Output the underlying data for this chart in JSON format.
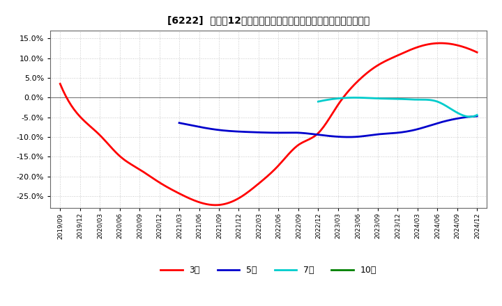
{
  "title": "[6222]  売上高12か月移動合計の対前年同期増減率の平均値の推移",
  "ylim": [
    -0.28,
    0.17
  ],
  "yticks": [
    -0.25,
    -0.2,
    -0.15,
    -0.1,
    -0.05,
    0.0,
    0.05,
    0.1,
    0.15
  ],
  "background_color": "#ffffff",
  "grid_color": "#c8c8c8",
  "x_labels": [
    "2019/09",
    "2019/12",
    "2020/03",
    "2020/06",
    "2020/09",
    "2020/12",
    "2021/03",
    "2021/06",
    "2021/09",
    "2021/12",
    "2022/03",
    "2022/06",
    "2022/09",
    "2022/12",
    "2023/03",
    "2023/06",
    "2023/09",
    "2023/12",
    "2024/03",
    "2024/06",
    "2024/09",
    "2024/12"
  ],
  "series": [
    {
      "key": "3year",
      "color": "#ff0000",
      "label": "3年",
      "data_x": [
        0,
        1,
        2,
        3,
        4,
        5,
        6,
        7,
        8,
        9,
        10,
        11,
        12,
        13,
        14,
        15,
        16,
        17,
        18,
        19,
        20,
        21
      ],
      "data_y": [
        0.035,
        -0.048,
        -0.095,
        -0.148,
        -0.182,
        -0.215,
        -0.243,
        -0.265,
        -0.272,
        -0.255,
        -0.218,
        -0.172,
        -0.12,
        -0.09,
        -0.018,
        0.042,
        0.082,
        0.107,
        0.128,
        0.138,
        0.133,
        0.115
      ]
    },
    {
      "key": "5year",
      "color": "#0000cc",
      "label": "5年",
      "data_x": [
        6,
        7,
        8,
        9,
        10,
        11,
        12,
        13,
        14,
        15,
        16,
        17,
        18,
        19,
        20,
        21
      ],
      "data_y": [
        -0.064,
        -0.074,
        -0.082,
        -0.086,
        -0.088,
        -0.089,
        -0.089,
        -0.094,
        -0.099,
        -0.099,
        -0.093,
        -0.089,
        -0.08,
        -0.065,
        -0.053,
        -0.047
      ]
    },
    {
      "key": "7year",
      "color": "#00cccc",
      "label": "7年",
      "data_x": [
        13,
        14,
        15,
        16,
        17,
        18,
        19,
        20,
        21
      ],
      "data_y": [
        -0.01,
        -0.002,
        0.0,
        -0.002,
        -0.003,
        -0.005,
        -0.01,
        -0.038,
        -0.044
      ]
    },
    {
      "key": "10year",
      "color": "#008000",
      "label": "10年",
      "data_x": [],
      "data_y": []
    }
  ]
}
